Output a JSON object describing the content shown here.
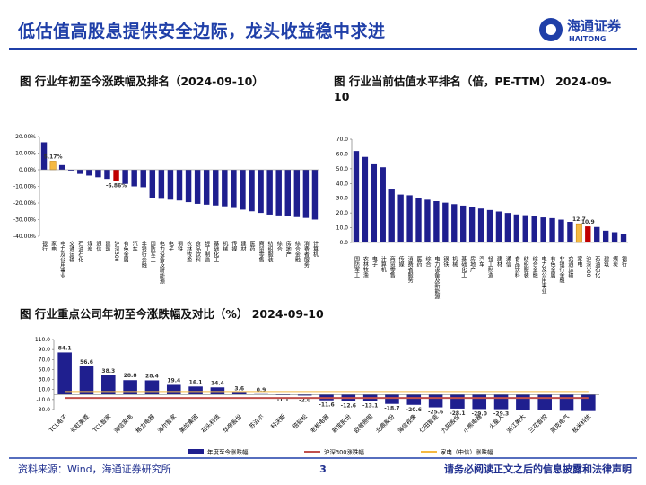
{
  "header": {
    "title": "低估值高股息提供安全边际，龙头收益稳中求进",
    "logo_cn": "海通证券",
    "logo_en": "HAITONG"
  },
  "chart_data": [
    {
      "type": "bar",
      "title": "图 行业年初至今涨跌幅及排名（2024-09-10）",
      "categories": [
        "银行",
        "家电",
        "电力及公用事业",
        "交通运输",
        "石油石化",
        "煤炭",
        "通信",
        "建筑",
        "沪深300",
        "有色金属",
        "汽车",
        "非银行金融",
        "国防军工",
        "电力设备及新能源",
        "电子",
        "钢铁",
        "农林牧渔",
        "食品饮料",
        "轻工制造",
        "基础化工",
        "机械",
        "传媒",
        "建材",
        "医药",
        "商贸零售",
        "纺织服装",
        "综合",
        "房地产",
        "综合金融",
        "消费者服务",
        "计算机"
      ],
      "values": [
        16.5,
        5.17,
        2.8,
        -0.5,
        -2.5,
        -3.5,
        -4.5,
        -5.5,
        -6.86,
        -8.5,
        -10,
        -10.5,
        -17,
        -17.5,
        -18,
        -18.5,
        -19.5,
        -20.5,
        -21,
        -21.5,
        -22,
        -23,
        -24,
        -25,
        -26,
        -27,
        -27.5,
        -28,
        -28.5,
        -29,
        -30
      ],
      "value_labels": [
        null,
        "5.17%",
        null,
        null,
        null,
        null,
        null,
        null,
        "-6.86%",
        null,
        null,
        null,
        null,
        null,
        null,
        null,
        null,
        null,
        null,
        null,
        null,
        null,
        null,
        null,
        null,
        null,
        null,
        null,
        null,
        null,
        null
      ],
      "colors": [
        "#1f1f8f",
        "#f5b942",
        "#1f1f8f",
        "#1f1f8f",
        "#1f1f8f",
        "#1f1f8f",
        "#1f1f8f",
        "#1f1f8f",
        "#c00000",
        "#1f1f8f",
        "#1f1f8f",
        "#1f1f8f",
        "#1f1f8f",
        "#1f1f8f",
        "#1f1f8f",
        "#1f1f8f",
        "#1f1f8f",
        "#1f1f8f",
        "#1f1f8f",
        "#1f1f8f",
        "#1f1f8f",
        "#1f1f8f",
        "#1f1f8f",
        "#1f1f8f",
        "#1f1f8f",
        "#1f1f8f",
        "#1f1f8f",
        "#1f1f8f",
        "#1f1f8f",
        "#1f1f8f",
        "#1f1f8f"
      ],
      "ylim": [
        -40,
        20
      ],
      "yticks": [
        {
          "value": 20,
          "label": "20.00%"
        },
        {
          "value": 10,
          "label": "10.00%"
        },
        {
          "value": 0,
          "label": "0.00%"
        },
        {
          "value": -10,
          "label": "-10.00%"
        },
        {
          "value": -20,
          "label": "-20.00%"
        },
        {
          "value": -30,
          "label": "-30.00%"
        },
        {
          "value": -40,
          "label": "-40.00%"
        }
      ]
    },
    {
      "type": "bar",
      "title": "图 行业当前估值水平排名（倍，PE-TTM） 2024-09-10",
      "categories": [
        "国防军工",
        "农林牧渔",
        "电子",
        "计算机",
        "商贸零售",
        "传媒",
        "消费者服务",
        "医药",
        "综合",
        "电力设备及新能源",
        "钢铁",
        "机械",
        "基础化工",
        "房地产",
        "汽车",
        "轻工制造",
        "建材",
        "通信",
        "食品饮料",
        "纺织服装",
        "综合金融",
        "电力及公用事业",
        "有色金属",
        "非银行金融",
        "交通运输",
        "家电",
        "沪深300",
        "石油石化",
        "建筑",
        "煤炭",
        "银行"
      ],
      "values": [
        62,
        58,
        53,
        51,
        36.5,
        32.5,
        32,
        30,
        29,
        28,
        27,
        26,
        25,
        24,
        23,
        22,
        21,
        20,
        19,
        18.5,
        18,
        17,
        16.5,
        15.5,
        14,
        12.7,
        10.9,
        10.5,
        8,
        7,
        5.5
      ],
      "value_labels": [
        null,
        null,
        null,
        null,
        null,
        null,
        null,
        null,
        null,
        null,
        null,
        null,
        null,
        null,
        null,
        null,
        null,
        null,
        null,
        null,
        null,
        null,
        null,
        null,
        null,
        "12.7",
        "10.9",
        null,
        null,
        null,
        null
      ],
      "colors": [
        "#1f1f8f",
        "#1f1f8f",
        "#1f1f8f",
        "#1f1f8f",
        "#1f1f8f",
        "#1f1f8f",
        "#1f1f8f",
        "#1f1f8f",
        "#1f1f8f",
        "#1f1f8f",
        "#1f1f8f",
        "#1f1f8f",
        "#1f1f8f",
        "#1f1f8f",
        "#1f1f8f",
        "#1f1f8f",
        "#1f1f8f",
        "#1f1f8f",
        "#1f1f8f",
        "#1f1f8f",
        "#1f1f8f",
        "#1f1f8f",
        "#1f1f8f",
        "#1f1f8f",
        "#1f1f8f",
        "#f5b942",
        "#c00000",
        "#1f1f8f",
        "#1f1f8f",
        "#1f1f8f",
        "#1f1f8f"
      ],
      "ylim": [
        0,
        70
      ],
      "yticks": [
        {
          "value": 0,
          "label": "0.0"
        },
        {
          "value": 10,
          "label": "10.0"
        },
        {
          "value": 20,
          "label": "20.0"
        },
        {
          "value": 30,
          "label": "30.0"
        },
        {
          "value": 40,
          "label": "40.0"
        },
        {
          "value": 50,
          "label": "50.0"
        },
        {
          "value": 60,
          "label": "60.0"
        },
        {
          "value": 70,
          "label": "70.0"
        }
      ]
    },
    {
      "type": "bar",
      "title": "图 行业重点公司年初至今涨跌幅及对比（%） 2024-09-10",
      "categories": [
        "TCL电子",
        "长虹美菱",
        "TCL智家",
        "海信家电",
        "格力电器",
        "海尔智家",
        "美的集团",
        "石头科技",
        "华帝股份",
        "苏泊尔",
        "科沃斯",
        "倍轻松",
        "老板电器",
        "新宝股份",
        "欧普照明",
        "北鼎股份",
        "海信视像",
        "亿田智能",
        "九阳股份",
        "小熊电器",
        "火星人",
        "浙江美大",
        "三花智控",
        "莱克电气",
        "极米科技"
      ],
      "series": [
        {
          "name": "年度至今涨跌幅",
          "color": "#1f1f8f",
          "values": [
            84.1,
            56.6,
            38.3,
            28.8,
            28.4,
            19.4,
            16.1,
            14.4,
            3.6,
            0.9,
            -1.1,
            -2.0,
            -11.6,
            -12.6,
            -13.1,
            -18.7,
            -20.6,
            -25.6,
            -28.1,
            -29.0,
            -29.3,
            -30.5,
            -31,
            -32.5,
            -33
          ],
          "value_labels": [
            "84.1",
            "56.6",
            "38.3",
            "28.8",
            "28.4",
            "19.4",
            "16.1",
            "14.4",
            "3.6",
            "0.9",
            "-1.1",
            "-2.0",
            "-11.6",
            "-12.6",
            "-13.1",
            "-18.7",
            "-20.6",
            "-25.6",
            "-28.1",
            "-29.0",
            "-29.3",
            null,
            null,
            null,
            null
          ]
        },
        {
          "name": "沪深300涨跌幅",
          "type": "line",
          "color": "#c0504d",
          "values": [
            -6.86,
            -6.86,
            -6.86,
            -6.86,
            -6.86,
            -6.86,
            -6.86,
            -6.86,
            -6.86,
            -6.86,
            -6.86,
            -6.86,
            -6.86,
            -6.86,
            -6.86,
            -6.86,
            -6.86,
            -6.86,
            -6.86,
            -6.86,
            -6.86,
            -6.86,
            -6.86,
            -6.86,
            -6.86
          ]
        },
        {
          "name": "家电（中信）涨跌幅",
          "type": "line",
          "color": "#f5b942",
          "values": [
            5.17,
            5.17,
            5.17,
            5.17,
            5.17,
            5.17,
            5.17,
            5.17,
            5.17,
            5.17,
            5.17,
            5.17,
            5.17,
            5.17,
            5.17,
            5.17,
            5.17,
            5.17,
            5.17,
            5.17,
            5.17,
            5.17,
            5.17,
            5.17,
            5.17
          ]
        }
      ],
      "ylim": [
        -30,
        110
      ],
      "yticks": [
        {
          "value": -30,
          "label": "-30.0"
        },
        {
          "value": -10,
          "label": "-10.0"
        },
        {
          "value": 10,
          "label": "10.0"
        },
        {
          "value": 30,
          "label": "30.0"
        },
        {
          "value": 50,
          "label": "50.0"
        },
        {
          "value": 70,
          "label": "70.0"
        },
        {
          "value": 90,
          "label": "90.0"
        },
        {
          "value": 110,
          "label": "110.0"
        }
      ]
    }
  ],
  "footer": {
    "source": "资料来源：Wind，海通证券研究所",
    "page": "3",
    "disclaimer": "请务必阅读正文之后的信息披露和法律声明"
  }
}
